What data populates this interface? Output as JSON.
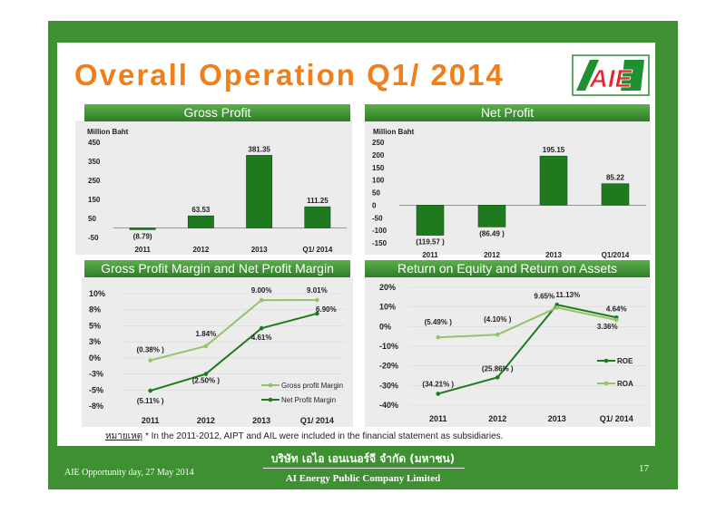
{
  "slide": {
    "title": "Overall Operation Q1/ 2014",
    "logo_text": "AIE",
    "footnote_label": "หมายเหตุ",
    "footnote_text": "* In the 2011-2012, AIPT and AIL were included in the financial statement as subsidiaries.",
    "company_th": "บริษัท เอไอ เอนเนอร์จี จำกัด (มหาชน)",
    "company_en": "AI Energy Public Company Limited",
    "event": "AIE Opportunity day, 27 May 2014",
    "page_number": "17"
  },
  "colors": {
    "frame_green": "#3f8f33",
    "title_orange": "#f07f1a",
    "bar_green": "#1f7a1f",
    "line_light": "#95c36a",
    "line_dark": "#1f7a1f"
  },
  "chart_data": [
    {
      "type": "bar",
      "title": "Gross Profit",
      "ylabel": "Million Baht",
      "categories": [
        "2011",
        "2012",
        "2013",
        "Q1/ 2014"
      ],
      "values": [
        -8.79,
        63.53,
        381.35,
        111.25
      ],
      "data_labels": [
        "(8.79)",
        "63.53",
        "381.35",
        "111.25"
      ],
      "ylim": [
        -50,
        450
      ],
      "yticks": [
        "450",
        "350",
        "250",
        "150",
        "50",
        "-50"
      ]
    },
    {
      "type": "bar",
      "title": "Net Profit",
      "ylabel": "Million Baht",
      "categories": [
        "2011",
        "2012",
        "2013",
        "Q1/2014"
      ],
      "values": [
        -119.57,
        -86.49,
        195.15,
        85.22
      ],
      "data_labels": [
        "(119.57 )",
        "(86.49 )",
        "195.15",
        "85.22"
      ],
      "ylim": [
        -150,
        250
      ],
      "yticks": [
        "250",
        "200",
        "150",
        "100",
        "50",
        "0",
        "-50",
        "-100",
        "-150"
      ]
    },
    {
      "type": "line",
      "title": "Gross Profit Margin and Net Profit Margin",
      "categories": [
        "2011",
        "2012",
        "2013",
        "Q1/ 2014"
      ],
      "yticks": [
        "10%",
        "8%",
        "5%",
        "3%",
        "0%",
        "-3%",
        "-5%",
        "-8%"
      ],
      "ylim": [
        -7.5,
        10
      ],
      "series": [
        {
          "name": "Gross profit Margin",
          "values": [
            -0.38,
            1.84,
            9.0,
            9.01
          ],
          "labels": [
            "(0.38% )",
            "1.84%",
            "9.00%",
            "9.01%"
          ]
        },
        {
          "name": "Net Profit Margin",
          "values": [
            -5.11,
            -2.5,
            4.61,
            6.9
          ],
          "labels": [
            "(5.11% )",
            "(2.50% )",
            "4.61%",
            "6.90%"
          ]
        }
      ],
      "legend": "bottom-right"
    },
    {
      "type": "line",
      "title": "Return on Equity and Return on Assets",
      "categories": [
        "2011",
        "2012",
        "2013",
        "Q1/ 2014"
      ],
      "yticks": [
        "20%",
        "10%",
        "0%",
        "-10%",
        "-20%",
        "-30%",
        "-40%"
      ],
      "ylim": [
        -40,
        20
      ],
      "series": [
        {
          "name": "ROE",
          "values": [
            -34.21,
            -25.86,
            11.13,
            4.64
          ],
          "labels": [
            "(34.21% )",
            "(25.86% )",
            "11.13%",
            "4.64%"
          ]
        },
        {
          "name": "ROA",
          "values": [
            -5.49,
            -4.1,
            9.65,
            3.36
          ],
          "labels": [
            "(5.49% )",
            "(4.10% )",
            "9.65%",
            "3.36%"
          ]
        }
      ],
      "legend": "right"
    }
  ]
}
